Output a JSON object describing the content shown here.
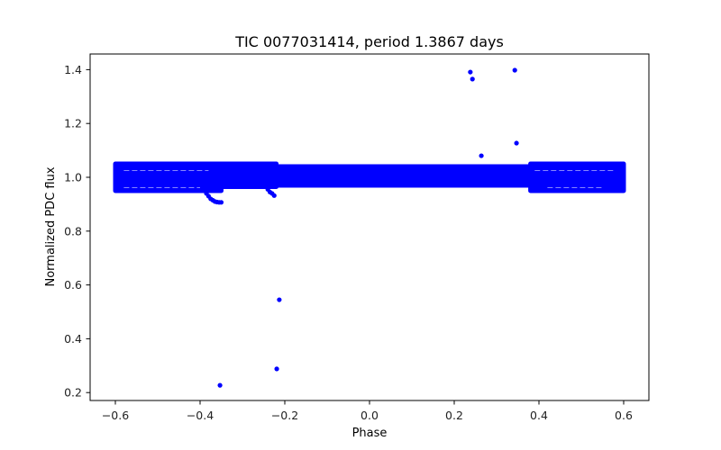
{
  "chart_data": {
    "type": "scatter",
    "title": "TIC 0077031414, period 1.3867 days",
    "xlabel": "Phase",
    "ylabel": "Normalized PDC flux",
    "xlim": [
      -0.65,
      0.66
    ],
    "ylim": [
      0.18,
      1.46
    ],
    "xticks": [
      -0.6,
      -0.4,
      -0.2,
      0.0,
      0.2,
      0.4,
      0.6
    ],
    "xtick_labels": [
      "−0.6",
      "−0.4",
      "−0.2",
      "0.0",
      "0.2",
      "0.4",
      "0.6"
    ],
    "yticks": [
      0.2,
      0.4,
      0.6,
      0.8,
      1.0,
      1.2,
      1.4
    ],
    "ytick_labels": [
      "0.2",
      "0.4",
      "0.6",
      "0.8",
      "1.0",
      "1.2",
      "1.4"
    ],
    "grid": false,
    "legend": null,
    "marker_color": "#0000ff",
    "series": [
      {
        "name": "main band",
        "description": "dense band of points spanning phase -0.6 to 0.6",
        "band_segments": [
          {
            "x_start": -0.6,
            "x_end": -0.35,
            "y_min": 0.95,
            "y_max": 1.05
          },
          {
            "x_start": -0.35,
            "x_end": -0.22,
            "y_min": 0.965,
            "y_max": 1.05
          },
          {
            "x_start": -0.22,
            "x_end": 0.38,
            "y_min": 0.97,
            "y_max": 1.04
          },
          {
            "x_start": 0.38,
            "x_end": 0.6,
            "y_min": 0.95,
            "y_max": 1.05
          }
        ]
      },
      {
        "name": "dip tails",
        "x": [
          -0.39,
          -0.385,
          -0.38,
          -0.375,
          -0.37,
          -0.365,
          -0.36,
          -0.355,
          -0.35,
          -0.24,
          -0.235,
          -0.23,
          -0.225
        ],
        "y": [
          0.955,
          0.94,
          0.93,
          0.92,
          0.915,
          0.91,
          0.908,
          0.907,
          0.907,
          0.955,
          0.945,
          0.94,
          0.932
        ]
      },
      {
        "name": "outliers",
        "x": [
          -0.353,
          -0.219,
          -0.213,
          0.238,
          0.243,
          0.264,
          0.343,
          0.347
        ],
        "y": [
          0.227,
          0.288,
          0.545,
          1.391,
          1.365,
          1.08,
          1.398,
          1.127
        ]
      }
    ]
  }
}
